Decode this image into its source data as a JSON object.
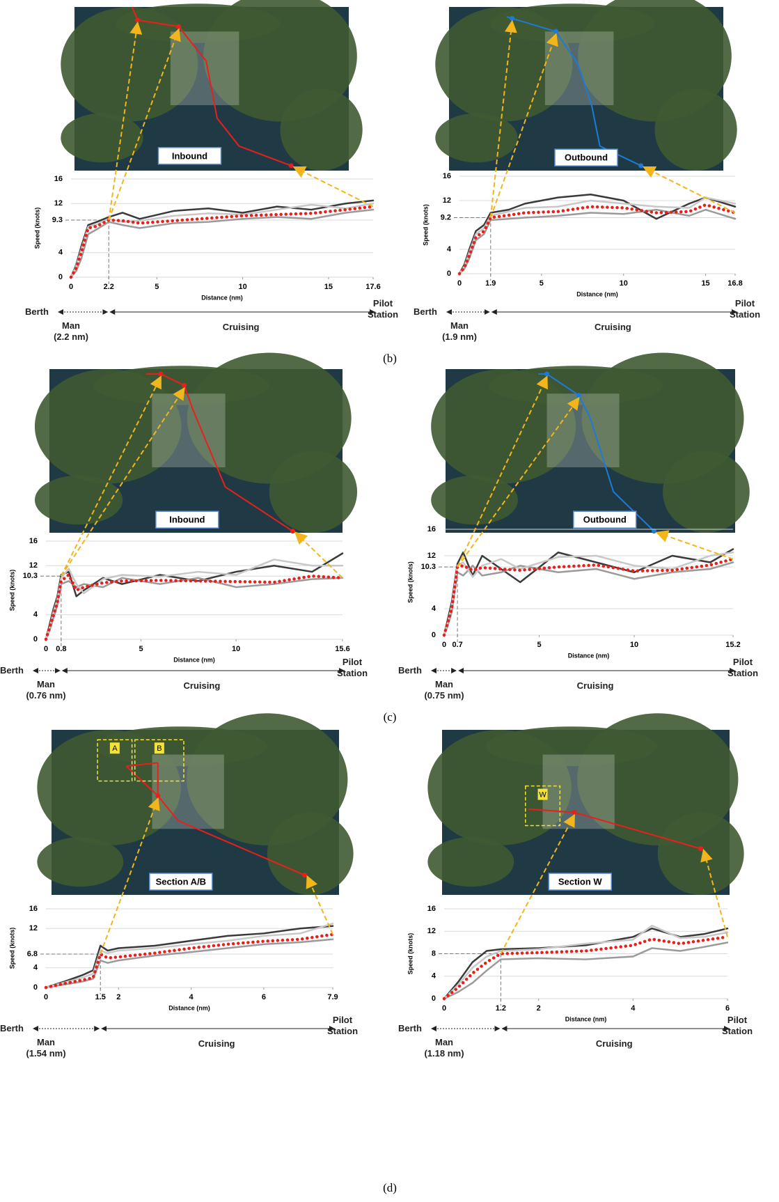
{
  "panel_labels": [
    "(b)",
    "(c)",
    "(d)"
  ],
  "chart_data": [
    {
      "type": "line",
      "map_label": "Inbound",
      "map_marks": [],
      "x_label": "Distance (nm)",
      "y_label": "Speed (knots)",
      "phases": {
        "start": "Berth",
        "maneuvering": "Man\n(2.2 nm)",
        "cruising": "Cruising",
        "end": "Pilot\nStation"
      },
      "x": [
        0,
        0.3,
        0.6,
        1,
        1.5,
        2.2,
        3,
        4,
        6,
        8,
        10,
        12,
        14,
        16,
        17.6
      ],
      "xlim": [
        0,
        17.6
      ],
      "xticks": [
        0,
        2.2,
        5,
        10,
        15,
        17.6
      ],
      "ylim": [
        0,
        16
      ],
      "yticks": [
        0,
        4,
        9.3,
        12,
        16
      ],
      "grid": true,
      "route_color": "#e8201c",
      "series": [
        {
          "color": "#3a3a3a",
          "style": "solid",
          "values": [
            0,
            2,
            5,
            8.5,
            9,
            9.8,
            10.5,
            9.5,
            10.8,
            11.2,
            10.5,
            11.5,
            11,
            12,
            12.5
          ]
        },
        {
          "color": "#9a9a9a",
          "style": "solid",
          "values": [
            0,
            1,
            3,
            7,
            7.8,
            9,
            8.5,
            8,
            8.8,
            9,
            9.5,
            9.8,
            9.5,
            10.5,
            11
          ]
        },
        {
          "color": "#c8c8c8",
          "style": "solid",
          "values": [
            0,
            1.8,
            4.5,
            8.2,
            8.6,
            9.5,
            9,
            9.2,
            10,
            10.4,
            10.2,
            11,
            11.8,
            11.2,
            12
          ]
        },
        {
          "color": "#e8201c",
          "style": "dotted",
          "values": [
            0,
            1.5,
            4,
            8,
            8.3,
            9.3,
            9.2,
            8.8,
            9.2,
            9.6,
            10,
            10.2,
            10.4,
            11,
            11.5
          ]
        }
      ]
    },
    {
      "type": "line",
      "map_label": "Outbound",
      "map_marks": [],
      "x_label": "Distance (nm)",
      "y_label": "Speed (knots)",
      "phases": {
        "start": "Berth",
        "maneuvering": "Man\n(1.9 nm)",
        "cruising": "Cruising",
        "end": "Pilot\nStation"
      },
      "x": [
        0,
        0.3,
        0.6,
        1,
        1.5,
        1.9,
        3,
        4,
        6,
        8,
        10,
        12,
        14,
        15,
        16.8
      ],
      "xlim": [
        0,
        16.8
      ],
      "xticks": [
        0,
        1.9,
        5,
        10,
        15,
        16.8
      ],
      "ylim": [
        0,
        16
      ],
      "yticks": [
        0,
        4,
        9.2,
        12,
        16
      ],
      "grid": true,
      "route_color": "#1e7ad8",
      "series": [
        {
          "color": "#3a3a3a",
          "style": "solid",
          "values": [
            0,
            1.5,
            4,
            7,
            8,
            10,
            10.5,
            11.5,
            12.5,
            13,
            12,
            9,
            11.5,
            12.5,
            11
          ]
        },
        {
          "color": "#9a9a9a",
          "style": "solid",
          "values": [
            0,
            0.8,
            2.5,
            5.5,
            6.5,
            8.8,
            9,
            9.2,
            9.5,
            10,
            9.8,
            10.5,
            9.5,
            10.5,
            9
          ]
        },
        {
          "color": "#c8c8c8",
          "style": "solid",
          "values": [
            0,
            1.2,
            3.5,
            6.5,
            7.5,
            9.5,
            10.2,
            10.8,
            11,
            12,
            11.5,
            11,
            10.8,
            12.5,
            11.5
          ]
        },
        {
          "color": "#e8201c",
          "style": "dotted",
          "values": [
            0,
            1,
            3,
            6,
            7,
            9.2,
            9.6,
            10,
            10.2,
            11,
            10.8,
            10,
            10.2,
            11.3,
            10
          ]
        }
      ]
    },
    {
      "type": "line",
      "map_label": "Inbound",
      "map_marks": [],
      "x_label": "Distance (nm)",
      "y_label": "Speed (knots)",
      "phases": {
        "start": "Berth",
        "maneuvering": "Man\n(0.76 nm)",
        "cruising": "Cruising",
        "end": "Pilot\nStation"
      },
      "x": [
        0,
        0.2,
        0.4,
        0.6,
        0.8,
        1.2,
        1.6,
        2,
        3,
        4,
        6,
        8,
        10,
        12,
        14,
        15.6
      ],
      "xlim": [
        0,
        15.6
      ],
      "xticks": [
        0,
        0.8,
        5,
        10,
        15.6
      ],
      "ylim": [
        0,
        16
      ],
      "yticks": [
        0,
        4,
        10.3,
        12,
        16
      ],
      "grid": true,
      "route_color": "#e8201c",
      "series": [
        {
          "color": "#3a3a3a",
          "style": "solid",
          "values": [
            0,
            2.5,
            5,
            7,
            10.5,
            11,
            7,
            8,
            10,
            9,
            10.5,
            9.5,
            11,
            12,
            11,
            14
          ]
        },
        {
          "color": "#9a9a9a",
          "style": "solid",
          "values": [
            0,
            1.5,
            3.5,
            5.5,
            9,
            9.5,
            8.5,
            9,
            8.5,
            10,
            9,
            10,
            8.5,
            9,
            9.8,
            10
          ]
        },
        {
          "color": "#c8c8c8",
          "style": "solid",
          "values": [
            0,
            2,
            4.5,
            6.5,
            10,
            11.5,
            9,
            7.5,
            9.8,
            10.5,
            10.2,
            11,
            10.5,
            13,
            12,
            12
          ]
        },
        {
          "color": "#e8201c",
          "style": "dotted",
          "values": [
            0,
            2,
            4,
            6,
            9.5,
            10.5,
            8,
            8.5,
            9.2,
            9.5,
            9.6,
            9.5,
            9.4,
            9.3,
            10.3,
            10
          ]
        }
      ]
    },
    {
      "type": "line",
      "map_label": "Outbound",
      "map_marks": [],
      "x_label": "Distance (nm)",
      "y_label": "Speed (knots)",
      "phases": {
        "start": "Berth",
        "maneuvering": "Man\n(0.75 nm)",
        "cruising": "Cruising",
        "end": "Pilot\nStation"
      },
      "x": [
        0,
        0.2,
        0.4,
        0.7,
        1,
        1.5,
        2,
        3,
        4,
        6,
        8,
        10,
        12,
        14,
        15.2
      ],
      "xlim": [
        0,
        15.2
      ],
      "xticks": [
        0,
        0.7,
        5,
        10,
        15.2
      ],
      "ylim": [
        0,
        16
      ],
      "yticks": [
        0,
        4,
        10.3,
        12,
        16
      ],
      "grid": true,
      "route_color": "#1e7ad8",
      "series": [
        {
          "color": "#3a3a3a",
          "style": "solid",
          "values": [
            0,
            2.5,
            5,
            10.8,
            12.5,
            9,
            12,
            10,
            8,
            12.5,
            11,
            9.5,
            12,
            11,
            13
          ]
        },
        {
          "color": "#9a9a9a",
          "style": "solid",
          "values": [
            0,
            1.5,
            3.5,
            9.5,
            9,
            10.5,
            9,
            9.5,
            10.5,
            9.5,
            10,
            8.5,
            9.5,
            10,
            11
          ]
        },
        {
          "color": "#c8c8c8",
          "style": "solid",
          "values": [
            0,
            2,
            4.5,
            10.5,
            11,
            8.8,
            10.5,
            11.5,
            10,
            11.8,
            12,
            10.5,
            10,
            12,
            12.5
          ]
        },
        {
          "color": "#e8201c",
          "style": "dotted",
          "values": [
            0,
            2,
            4,
            10.3,
            10.5,
            9.8,
            10.2,
            10,
            9.8,
            10.3,
            10.6,
            9.7,
            9.8,
            10.6,
            11.5
          ]
        }
      ]
    },
    {
      "type": "line",
      "map_label": "Section A/B",
      "map_marks": [
        "A",
        "B"
      ],
      "x_label": "Distance (nm)",
      "y_label": "Speed (knots)",
      "phases": {
        "start": "Berth",
        "maneuvering": "Man\n(1.54 nm)",
        "cruising": "Cruising",
        "end": "Pilot\nStation"
      },
      "x": [
        0,
        0.5,
        1,
        1.3,
        1.5,
        1.7,
        2,
        3,
        4,
        5,
        6,
        7,
        7.9
      ],
      "xlim": [
        0,
        7.9
      ],
      "xticks": [
        0,
        1.5,
        2,
        4,
        6,
        7.9
      ],
      "ylim": [
        0,
        16
      ],
      "yticks": [
        0,
        4,
        6.8,
        12,
        16
      ],
      "grid": true,
      "route_color": "#e8201c",
      "series": [
        {
          "color": "#3a3a3a",
          "style": "solid",
          "values": [
            0,
            1.2,
            2.5,
            3.5,
            8.5,
            7.5,
            8,
            8.5,
            9.5,
            10.5,
            11,
            12,
            12.5
          ]
        },
        {
          "color": "#9a9a9a",
          "style": "solid",
          "values": [
            0,
            0.6,
            1.2,
            1.8,
            5.5,
            5,
            5.5,
            6.5,
            7.2,
            8,
            8.8,
            9.2,
            9.8
          ]
        },
        {
          "color": "#c8c8c8",
          "style": "solid",
          "values": [
            0,
            1,
            2,
            2.8,
            7.5,
            7,
            7.5,
            8,
            8.8,
            9.5,
            10.5,
            11,
            13
          ]
        },
        {
          "color": "#e8201c",
          "style": "dotted",
          "values": [
            0,
            0.8,
            1.5,
            2,
            6.8,
            6,
            6.2,
            7,
            8,
            8.8,
            9.4,
            9.8,
            10.8
          ]
        }
      ]
    },
    {
      "type": "line",
      "map_label": "Section W",
      "map_marks": [
        "W"
      ],
      "x_label": "Distance (nm)",
      "y_label": "Speed (knots)",
      "phases": {
        "start": "Berth",
        "maneuvering": "Man\n(1.18 nm)",
        "cruising": "Cruising",
        "end": "Pilot\nStation"
      },
      "x": [
        0,
        0.3,
        0.6,
        0.9,
        1.2,
        2,
        3,
        4,
        4.4,
        5,
        5.5,
        6
      ],
      "xlim": [
        0,
        6
      ],
      "xticks": [
        0,
        1.2,
        2,
        4,
        6
      ],
      "ylim": [
        0,
        16
      ],
      "yticks": [
        0,
        4,
        8,
        12,
        16
      ],
      "grid": true,
      "route_color": "#e8201c",
      "series": [
        {
          "color": "#3a3a3a",
          "style": "solid",
          "values": [
            0,
            3,
            6.5,
            8.5,
            8.8,
            9,
            9.5,
            11,
            12.5,
            11,
            11.5,
            12.5
          ]
        },
        {
          "color": "#9a9a9a",
          "style": "solid",
          "values": [
            0,
            1.2,
            2.8,
            5,
            7,
            7.2,
            7,
            7.5,
            9,
            8.5,
            9.2,
            10
          ]
        },
        {
          "color": "#c8c8c8",
          "style": "solid",
          "values": [
            0,
            2.5,
            5.5,
            7.5,
            8.5,
            8.8,
            9.8,
            10.5,
            13,
            10.8,
            11,
            11.8
          ]
        },
        {
          "color": "#e8201c",
          "style": "dotted",
          "values": [
            0,
            2,
            4.5,
            6.5,
            8,
            8.2,
            8.5,
            9.5,
            10.6,
            9.8,
            10.4,
            11
          ]
        }
      ]
    }
  ]
}
